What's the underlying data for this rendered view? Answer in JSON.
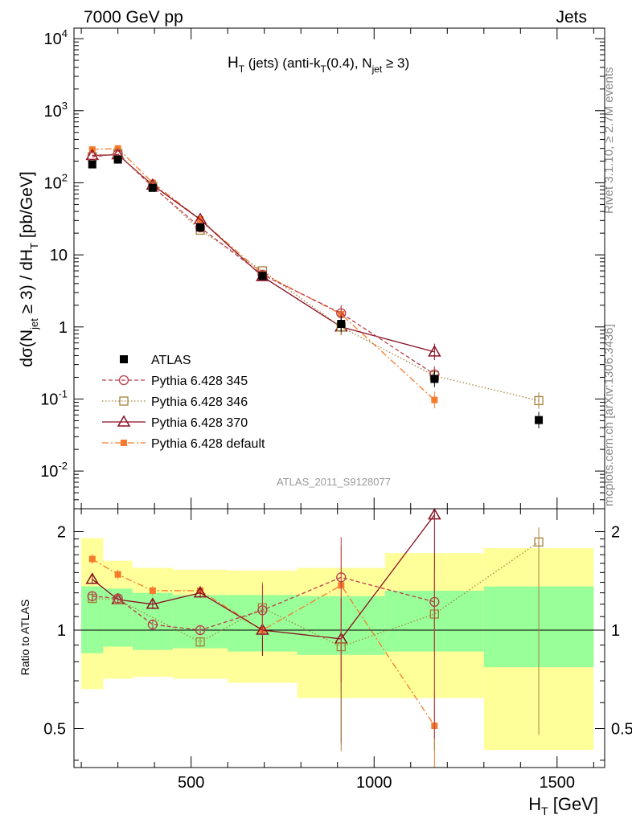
{
  "header": {
    "left": "7000 GeV pp",
    "right": "Jets"
  },
  "title": {
    "main": "H",
    "sub1": "T",
    "part2": " (jets) (anti-k",
    "sub2": "T",
    "part3": "(0.4), N",
    "sub3": "jet",
    "part4": " ≥ 3)"
  },
  "side": {
    "rivet": "Rivet 3.1.10, ≥ 2.7M events",
    "mcplots": "mcplots.cern.ch [arXiv:1306.3436]"
  },
  "analysis_id": "ATLAS_2011_S9128077",
  "axes": {
    "ylabel_top": {
      "a": "dσ(N",
      "b": "jet",
      "c": " ≥ 3) / dH",
      "d": "T",
      "e": " [pb/GeV]"
    },
    "ylabel_bottom": "Ratio to ATLAS",
    "xlabel": {
      "a": "H",
      "b": "T",
      "c": " [GeV]"
    }
  },
  "colors": {
    "atlas": "#000000",
    "p345": "#b83c4c",
    "p346": "#a5823a",
    "p370": "#8a0f22",
    "pdef": "#f57a2c",
    "band_inner": "#99ff99",
    "band_outer": "#ffff99"
  },
  "chart_data": [
    {
      "type": "scatter",
      "panel": "main",
      "xlim": [
        180,
        1630
      ],
      "ylim": [
        0.003,
        14000
      ],
      "log_y": true,
      "grid": false,
      "legend_position": "lower-left",
      "x_bins": [
        [
          200,
          260
        ],
        [
          260,
          340
        ],
        [
          340,
          450
        ],
        [
          450,
          600
        ],
        [
          600,
          790
        ],
        [
          790,
          1030
        ],
        [
          1030,
          1300
        ],
        [
          1300,
          1600
        ]
      ],
      "x_centers": [
        230,
        300,
        395,
        525,
        695,
        910,
        1165,
        1450
      ],
      "series": [
        {
          "name": "ATLAS",
          "style": "data",
          "values": [
            180,
            210,
            85,
            24,
            5.1,
            1.1,
            0.19,
            0.051
          ]
        },
        {
          "name": "Pythia 6.428 345",
          "style": "p345",
          "values": [
            230,
            250,
            88,
            24,
            5.3,
            1.55,
            0.22,
            null
          ]
        },
        {
          "name": "Pythia 6.428 346",
          "style": "p346",
          "values": [
            230,
            255,
            90,
            22,
            6.0,
            1.0,
            0.21,
            0.095
          ]
        },
        {
          "name": "Pythia 6.428 370",
          "style": "p370",
          "values": [
            240,
            245,
            93,
            31,
            5.0,
            1.0,
            0.45,
            null
          ]
        },
        {
          "name": "Pythia 6.428 default",
          "style": "pdef",
          "values": [
            290,
            300,
            100,
            31,
            5.5,
            1.5,
            0.097,
            null
          ]
        }
      ],
      "y_ticks": [
        {
          "base": "10",
          "exp": "-2",
          "value": 0.01
        },
        {
          "base": "10",
          "exp": "-1",
          "value": 0.1
        },
        {
          "base": "1",
          "exp": "",
          "value": 1
        },
        {
          "base": "10",
          "exp": "",
          "value": 10
        },
        {
          "base": "10",
          "exp": "2",
          "value": 100
        },
        {
          "base": "10",
          "exp": "3",
          "value": 1000
        },
        {
          "base": "10",
          "exp": "4",
          "value": 10000
        }
      ]
    },
    {
      "type": "scatter",
      "panel": "ratio",
      "xlim": [
        180,
        1630
      ],
      "ylim": [
        0.38,
        2.35
      ],
      "log_y": true,
      "grid": false,
      "band_inner": [
        [
          0.85,
          1.36
        ],
        [
          0.89,
          1.34
        ],
        [
          0.87,
          1.3
        ],
        [
          0.88,
          1.28
        ],
        [
          0.86,
          1.28
        ],
        [
          0.84,
          1.27
        ],
        [
          0.86,
          1.32
        ],
        [
          0.77,
          1.36
        ]
      ],
      "band_outer": [
        [
          0.66,
          1.91
        ],
        [
          0.71,
          1.63
        ],
        [
          0.72,
          1.55
        ],
        [
          0.71,
          1.53
        ],
        [
          0.69,
          1.52
        ],
        [
          0.62,
          1.55
        ],
        [
          0.62,
          1.72
        ],
        [
          0.43,
          1.78
        ]
      ],
      "series": [
        {
          "name": "Pythia 6.428 345",
          "style": "p345",
          "values": [
            1.27,
            1.25,
            1.04,
            1.0,
            1.15,
            1.45,
            1.22,
            null
          ]
        },
        {
          "name": "Pythia 6.428 346",
          "style": "p346",
          "values": [
            1.25,
            1.24,
            null,
            0.92,
            1.17,
            0.89,
            1.12,
            1.86
          ]
        },
        {
          "name": "Pythia 6.428 370",
          "style": "p370",
          "values": [
            1.43,
            1.24,
            1.2,
            1.3,
            1.0,
            0.94,
            2.25,
            null
          ]
        },
        {
          "name": "Pythia 6.428 default",
          "style": "pdef",
          "values": [
            1.65,
            1.48,
            1.32,
            1.32,
            1.0,
            1.37,
            0.51,
            null
          ]
        }
      ],
      "y_ticks": [
        {
          "label": "0.5",
          "value": 0.5
        },
        {
          "label": "1",
          "value": 1
        },
        {
          "label": "2",
          "value": 2
        }
      ],
      "x_ticks": [
        {
          "label": "500",
          "value": 500
        },
        {
          "label": "1000",
          "value": 1000
        },
        {
          "label": "1500",
          "value": 1500
        }
      ]
    }
  ]
}
